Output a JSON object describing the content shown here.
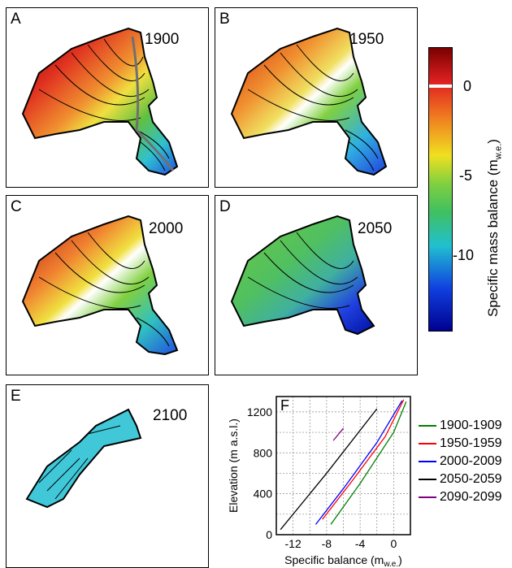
{
  "panels": [
    {
      "label": "A",
      "year": "1900"
    },
    {
      "label": "B",
      "year": "1950"
    },
    {
      "label": "C",
      "year": "2000"
    },
    {
      "label": "D",
      "year": "2050"
    },
    {
      "label": "E",
      "year": "2100"
    }
  ],
  "colorbar": {
    "title": "Specific mass balance (m",
    "title_sub": "w.e.",
    "title_end": ")",
    "ticks": [
      "0",
      "-5",
      "-10"
    ],
    "colors": {
      "top": "#7a0000",
      "red": "#e02020",
      "orange": "#f08020",
      "yellow": "#f0e020",
      "green": "#40c040",
      "cyan": "#20c0d0",
      "blue": "#1040e0",
      "navy": "#000090"
    }
  },
  "chart_data": {
    "type": "line",
    "panel_label": "F",
    "xlabel": "Specific balance (m",
    "xlabel_sub": "w.e.",
    "xlabel_end": ")",
    "ylabel": "Elevation (m a.s.l.)",
    "xlim": [
      -14,
      2
    ],
    "ylim": [
      0,
      1350
    ],
    "xticks": [
      "-12",
      "-8",
      "-4",
      "0"
    ],
    "xtick_values": [
      -12,
      -8,
      -4,
      0
    ],
    "yticks": [
      "0",
      "400",
      "800",
      "1200"
    ],
    "ytick_values": [
      0,
      400,
      800,
      1200
    ],
    "grid": true,
    "legend_position": "right",
    "series": [
      {
        "name": "1900-1909",
        "color": "#008000",
        "x": [
          -7.5,
          -4,
          0,
          1.5
        ],
        "y": [
          100,
          500,
          1000,
          1300
        ]
      },
      {
        "name": "1950-1959",
        "color": "#ff0000",
        "x": [
          -8.5,
          -5,
          -1,
          1.2
        ],
        "y": [
          150,
          520,
          960,
          1320
        ]
      },
      {
        "name": "2000-2009",
        "color": "#0000ff",
        "x": [
          -9.3,
          -6,
          -2,
          1.0
        ],
        "y": [
          100,
          450,
          900,
          1310
        ]
      },
      {
        "name": "2050-2059",
        "color": "#000000",
        "x": [
          -13.5,
          -8,
          -2
        ],
        "y": [
          50,
          600,
          1230
        ]
      },
      {
        "name": "2090-2099",
        "color": "#800080",
        "x": [
          -7.2,
          -6.0
        ],
        "y": [
          920,
          1040
        ]
      }
    ]
  }
}
